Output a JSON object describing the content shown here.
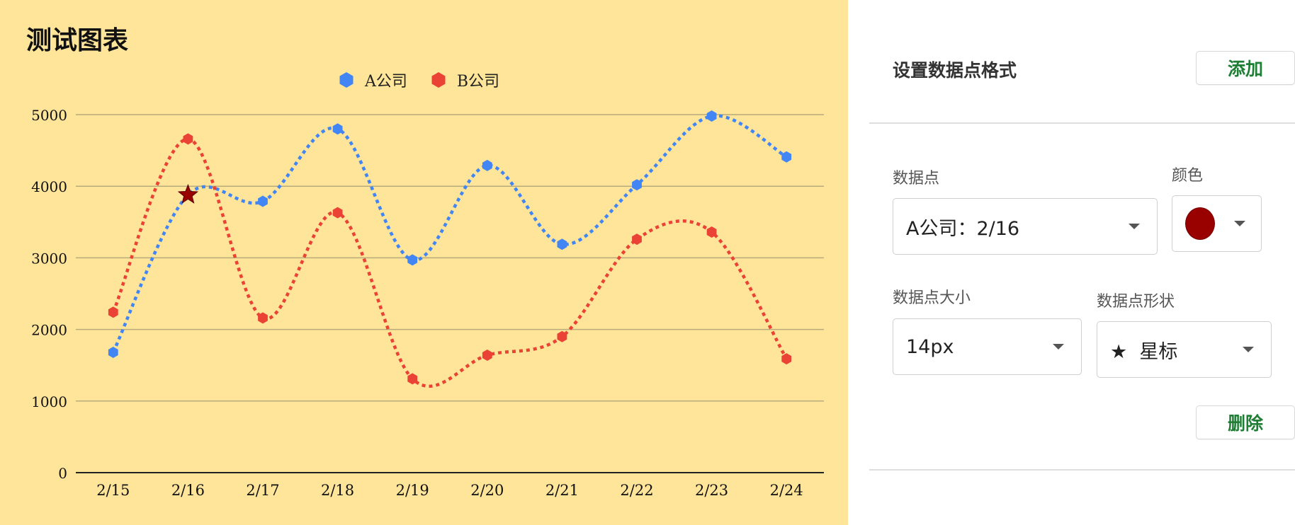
{
  "chart_data": {
    "type": "line",
    "title": "测试图表",
    "categories": [
      "2/15",
      "2/16",
      "2/17",
      "2/18",
      "2/19",
      "2/20",
      "2/21",
      "2/22",
      "2/23",
      "2/24"
    ],
    "series": [
      {
        "name": "A公司",
        "color": "#4285f4",
        "values": [
          1680,
          3880,
          3790,
          4800,
          2970,
          4290,
          3190,
          4020,
          4980,
          4410
        ]
      },
      {
        "name": "B公司",
        "color": "#ea4335",
        "values": [
          2240,
          4660,
          2160,
          3630,
          1310,
          1640,
          1900,
          3260,
          3360,
          1590
        ]
      }
    ],
    "ylim": [
      0,
      5000
    ],
    "yticks": [
      "0",
      "1000",
      "2000",
      "3000",
      "4000",
      "5000"
    ],
    "grid": true,
    "smooth": true,
    "line_style": "dotted",
    "point_shape": "hexagon",
    "legend_position": "top",
    "highlight": {
      "series": "A公司",
      "category": "2/16",
      "shape": "star",
      "color": "#990000"
    }
  },
  "panel": {
    "title": "设置数据点格式",
    "add_label": "添加",
    "delete_label": "删除",
    "point_label": "数据点",
    "point_value": "A公司：2/16",
    "color_label": "颜色",
    "color_value": "#990000",
    "size_label": "数据点大小",
    "size_value": "14px",
    "shape_label": "数据点形状",
    "shape_icon": "★",
    "shape_value": "星标"
  }
}
